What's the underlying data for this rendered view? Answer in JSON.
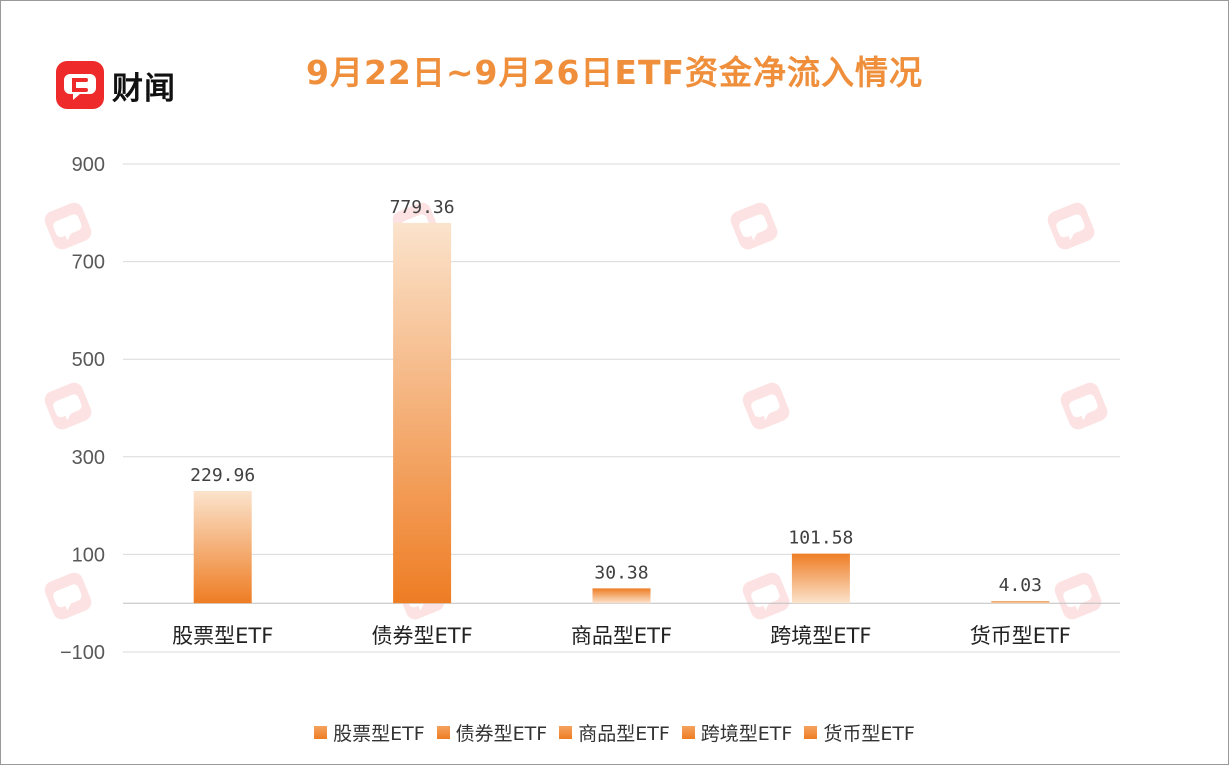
{
  "brand": {
    "name": "财闻",
    "icon": "chat-bubble-logo-icon",
    "color": "#ee2a2a"
  },
  "title": "9月22日~9月26日ETF资金净流入情况",
  "colors": {
    "bar_top": "#fbe3cc",
    "bar_bottom": "#ee7d24",
    "title": "#ef8f3c",
    "grid": "#d9d9d9"
  },
  "chart_data": {
    "type": "bar",
    "categories": [
      "股票型ETF",
      "债券型ETF",
      "商品型ETF",
      "跨境型ETF",
      "货币型ETF"
    ],
    "values": [
      229.96,
      779.36,
      30.38,
      101.58,
      4.03
    ],
    "data_labels": [
      "229.96",
      "779.36",
      "30.38",
      "101.58",
      "4.03"
    ],
    "yticks": [
      900,
      700,
      500,
      300,
      100,
      -100
    ],
    "ytick_labels": [
      "900",
      "700",
      "500",
      "300",
      "100",
      "−100"
    ],
    "ylim": [
      -100,
      900
    ],
    "grid": true,
    "legend_position": "bottom",
    "legend": [
      "股票型ETF",
      "债券型ETF",
      "商品型ETF",
      "跨境型ETF",
      "货币型ETF"
    ]
  }
}
